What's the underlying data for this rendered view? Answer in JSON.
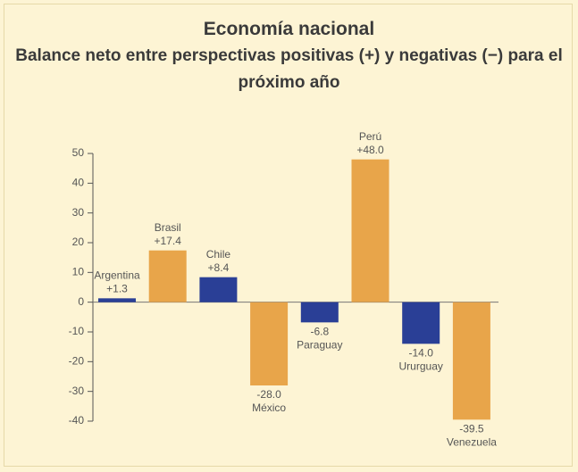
{
  "chart_data": {
    "type": "bar",
    "title": "Economía nacional",
    "subtitle": "Balance neto entre perspectivas positivas (+) y negativas (−) para el próximo año",
    "categories": [
      "Argentina",
      "Brasil",
      "Chile",
      "México",
      "Paraguay",
      "Perú",
      "Ururguay",
      "Venezuela"
    ],
    "values": [
      1.3,
      17.4,
      8.4,
      -28.0,
      -6.8,
      48.0,
      -14.0,
      -39.5
    ],
    "value_labels": [
      "+1.3",
      "+17.4",
      "+8.4",
      "-28.0",
      "-6.8",
      "+48.0",
      "-14.0",
      "-39.5"
    ],
    "colors": [
      "#2a3f96",
      "#e8a54a",
      "#2a3f96",
      "#e8a54a",
      "#2a3f96",
      "#e8a54a",
      "#2a3f96",
      "#e8a54a"
    ],
    "ylim": [
      -40,
      50
    ],
    "yticks": [
      -40,
      -30,
      -20,
      -10,
      0,
      10,
      20,
      30,
      40,
      50
    ]
  }
}
